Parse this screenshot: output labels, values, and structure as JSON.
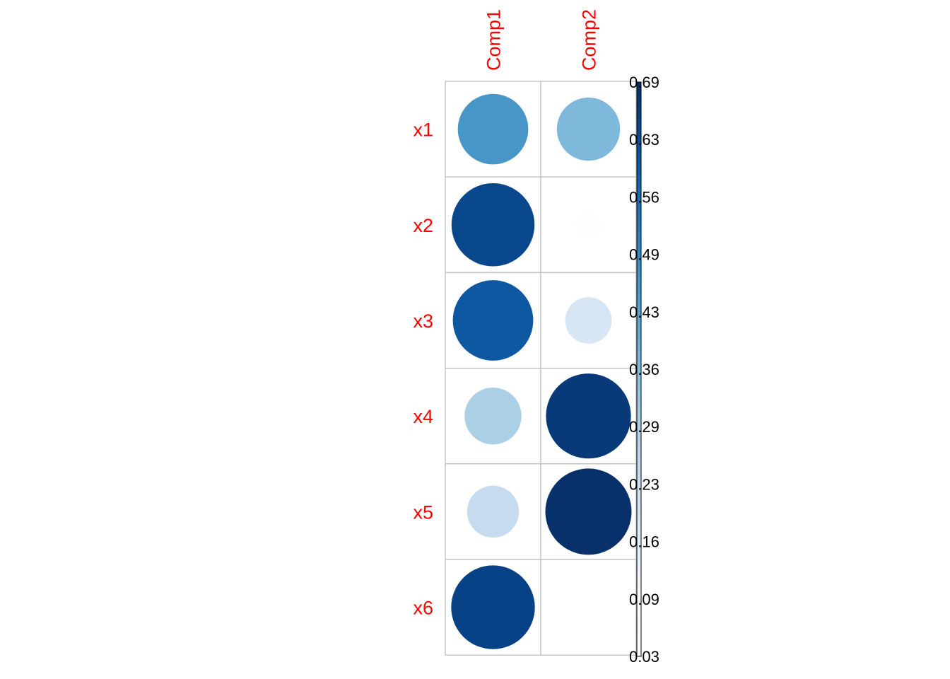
{
  "chart_data": {
    "type": "heatmap",
    "style": "corrplot-circle",
    "rows": [
      "x1",
      "x2",
      "x3",
      "x4",
      "x5",
      "x6"
    ],
    "columns": [
      "Comp1",
      "Comp2"
    ],
    "values": [
      [
        0.46,
        0.37
      ],
      [
        0.64,
        0.06
      ],
      [
        0.6,
        0.2
      ],
      [
        0.3,
        0.67
      ],
      [
        0.25,
        0.69
      ],
      [
        0.65,
        0.03
      ]
    ],
    "legend": {
      "type": "colorbar",
      "placement": "right",
      "min": 0.03,
      "max": 0.69,
      "ticks": [
        "0.69",
        "0.63",
        "0.56",
        "0.49",
        "0.43",
        "0.36",
        "0.29",
        "0.23",
        "0.16",
        "0.09",
        "0.03"
      ]
    },
    "colors": {
      "low": "#fff5f0",
      "scale": [
        "#ffffff",
        "#f7fbff",
        "#deebf7",
        "#c6dbef",
        "#9ecae1",
        "#6baed6",
        "#4292c6",
        "#2171b5",
        "#08519c",
        "#08306b"
      ],
      "label": "#ff0000",
      "grid": "#bebebe"
    },
    "title": "",
    "xlabel": "",
    "ylabel": "",
    "grid": true
  }
}
